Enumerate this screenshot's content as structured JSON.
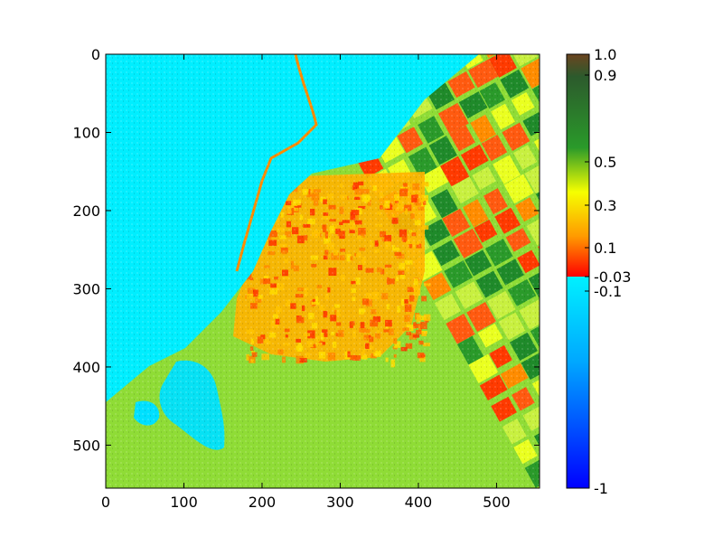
{
  "chart_data": {
    "type": "heatmap",
    "image_description": "Satellite vegetation-index raster of a coastal city; water (cyan) in the upper-left, urban core (orange/red) in the center, agricultural field parcels (green/red/yellow) toward the lower-right.",
    "title": "",
    "xlabel": "",
    "ylabel": "",
    "xlim": [
      0,
      555
    ],
    "ylim": [
      555,
      0
    ],
    "x_ticks": [
      0,
      100,
      200,
      300,
      400,
      500
    ],
    "y_ticks": [
      0,
      100,
      200,
      300,
      400,
      500
    ],
    "grid": false,
    "colorbar": {
      "min": -1,
      "max": 1.0,
      "tick_values": [
        1.0,
        0.9,
        0.5,
        0.3,
        0.1,
        -0.03,
        -0.1,
        -1
      ],
      "tick_labels": [
        "1.0",
        "0.9",
        "0.5",
        "0.3",
        "0.1",
        "-0.03",
        "-0.1",
        "-1"
      ],
      "colors": {
        "top_brown": "#6b4420",
        "dark_green": "#2c6a30",
        "green": "#2a9a2a",
        "yellow": "#f6ff00",
        "orange": "#ff9900",
        "red": "#ff0000",
        "cyan": "#00f0ff",
        "blue_light": "#0099ff",
        "blue": "#0000ff"
      }
    },
    "colors": {
      "water": "#00eeff",
      "urban": "#ffb000",
      "field_green": "#2a9a2a",
      "field_red": "#ff3a00",
      "field_yellow": "#eaff20",
      "field_orange": "#ff8c00"
    }
  }
}
